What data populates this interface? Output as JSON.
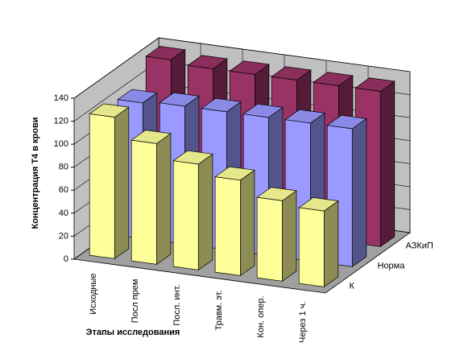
{
  "chart_data": {
    "type": "bar3d",
    "y_label": "Концентрация Т4 в крови",
    "x_label": "Этапы исследования",
    "categories": [
      "Исходные",
      "Посл прем",
      "Посл. инт.",
      "Травм. эт.",
      "Кон. опер.",
      "Через 1 ч."
    ],
    "series": [
      {
        "name": "К",
        "color": "#ffff99",
        "values": [
          123,
          105,
          92,
          83,
          70,
          66
        ]
      },
      {
        "name": "Норма",
        "color": "#9999ff",
        "values": [
          118,
          120,
          120,
          120,
          120,
          120
        ]
      },
      {
        "name": "АЗКиП",
        "color": "#993366",
        "values": [
          138,
          135,
          135,
          135,
          135,
          135
        ]
      }
    ],
    "ylim": [
      0,
      140
    ],
    "yticks": [
      0,
      20,
      40,
      60,
      80,
      100,
      120,
      140
    ],
    "grid": true
  }
}
